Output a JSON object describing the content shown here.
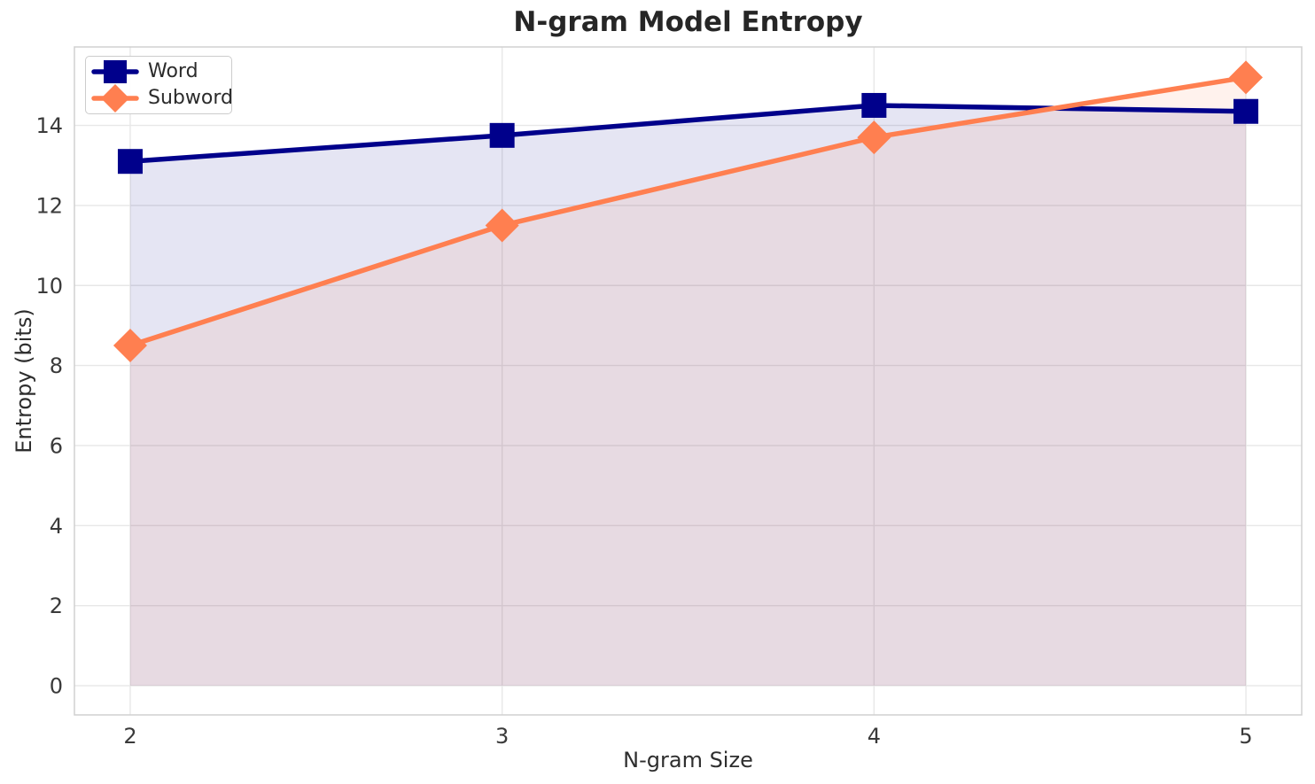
{
  "chart_data": {
    "type": "line",
    "title": "N-gram Model Entropy",
    "xlabel": "N-gram Size",
    "ylabel": "Entropy (bits)",
    "x": [
      2,
      3,
      4,
      5
    ],
    "x_tick_labels": [
      "2",
      "3",
      "4",
      "5"
    ],
    "y_tick_values": [
      0,
      2,
      4,
      6,
      8,
      10,
      12,
      14
    ],
    "y_tick_labels": [
      "0",
      "2",
      "4",
      "6",
      "8",
      "10",
      "12",
      "14"
    ],
    "xlim": [
      1.85,
      5.15
    ],
    "ylim": [
      -0.73,
      15.96
    ],
    "grid": true,
    "legend_position": "upper left",
    "series": [
      {
        "name": "Word",
        "marker": "square",
        "color": "#00008b",
        "fill_alpha": 0.1,
        "values": [
          13.1,
          13.75,
          14.5,
          14.35
        ]
      },
      {
        "name": "Subword",
        "marker": "diamond",
        "color": "#ff7f50",
        "fill_alpha": 0.1,
        "values": [
          8.5,
          11.5,
          13.7,
          15.2
        ]
      }
    ],
    "colors": {
      "grid": "#e7e7e7",
      "spine": "#d0d0d0",
      "title_text": "#262626",
      "axis_text": "#2e2e2e",
      "tick_text": "#3a3a3a",
      "background": "#ffffff"
    }
  }
}
